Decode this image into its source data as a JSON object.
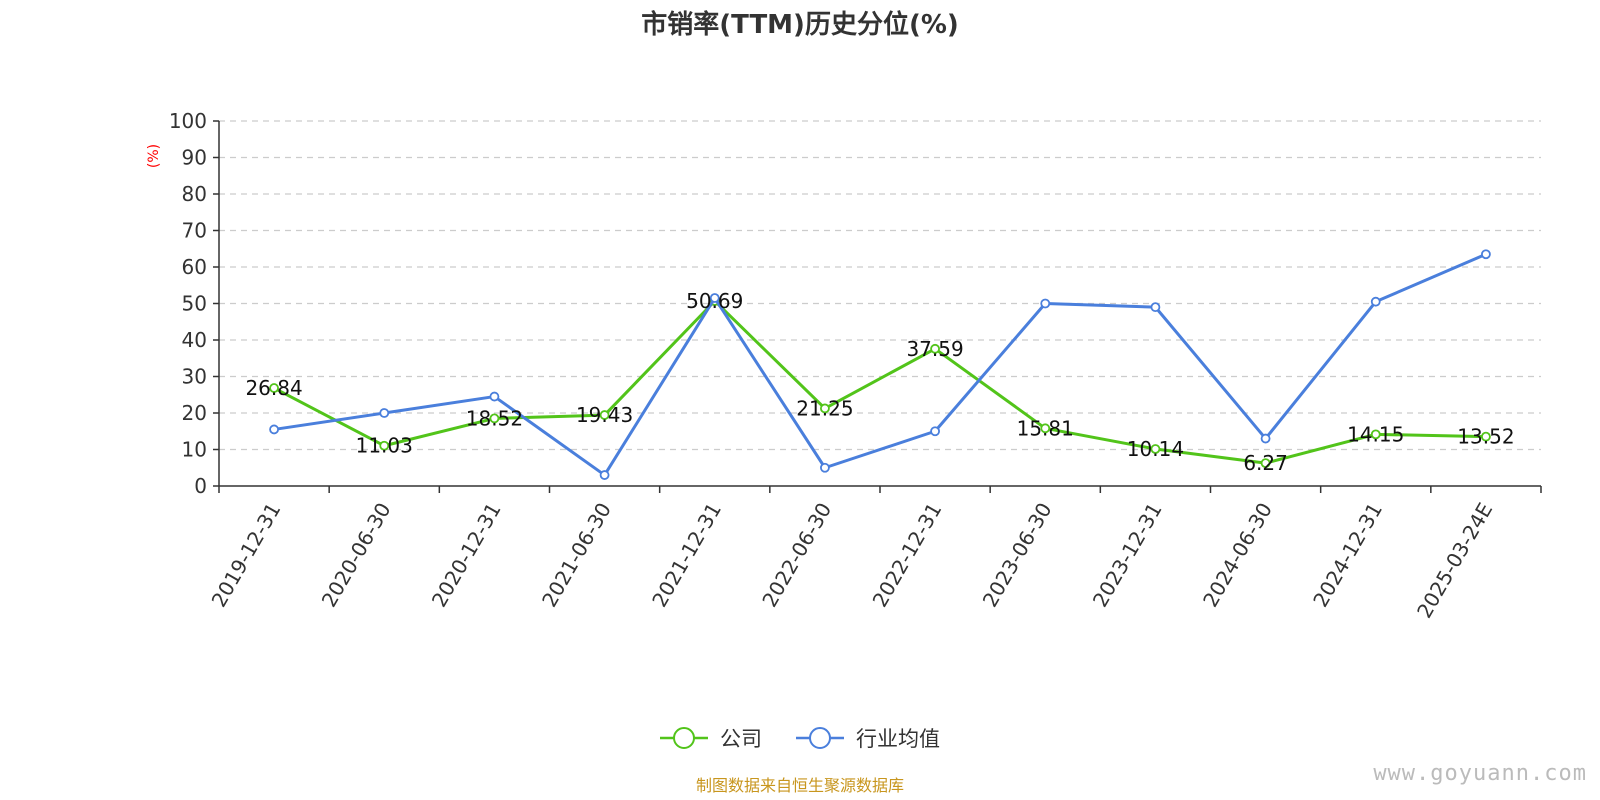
{
  "chart_data": {
    "type": "line",
    "title": "市销率(TTM)历史分位(%)",
    "ylabel": "(%)",
    "ylim": [
      0,
      100
    ],
    "yticks": [
      0,
      10,
      20,
      30,
      40,
      50,
      60,
      70,
      80,
      90,
      100
    ],
    "grid": true,
    "legend_position": "bottom-center",
    "categories": [
      "2019-12-31",
      "2020-06-30",
      "2020-12-31",
      "2021-06-30",
      "2021-12-31",
      "2022-06-30",
      "2022-12-31",
      "2023-06-30",
      "2023-12-31",
      "2024-06-30",
      "2024-12-31",
      "2025-03-24E"
    ],
    "series": [
      {
        "name": "公司",
        "color": "#52c41a",
        "values": [
          26.84,
          11.03,
          18.52,
          19.43,
          50.69,
          21.25,
          37.59,
          15.81,
          10.14,
          6.27,
          14.15,
          13.52
        ],
        "show_labels": true
      },
      {
        "name": "行业均值",
        "color": "#4a7fdc",
        "values": [
          15.5,
          20.0,
          24.5,
          3.0,
          51.5,
          5.0,
          15.0,
          50.0,
          49.0,
          13.0,
          50.5,
          63.5
        ],
        "show_labels": false
      }
    ]
  },
  "colors": {
    "axis": "#333333",
    "grid": "#cccccc",
    "unit": "#ff0000",
    "source": "#c8961e"
  },
  "footer": {
    "source": "制图数据来自恒生聚源数据库",
    "watermark": "www.goyuann.com"
  }
}
